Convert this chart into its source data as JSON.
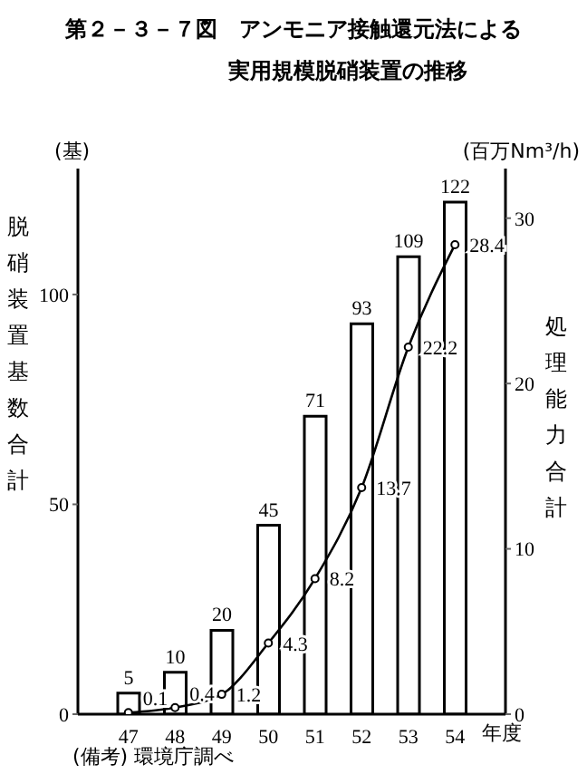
{
  "chart_data": {
    "type": "bar",
    "title": "第２－３－７図　アンモニア接触還元法による",
    "subtitle": "実用規模脱硝装置の推移",
    "xlabel": "年度",
    "ylabel": "脱硝装置基数合計",
    "y2label": "処理能力合計",
    "annotations": [
      "(基)",
      "(百万Nm³/h)",
      "(備考) 環境庁調べ"
    ],
    "categories": [
      "47",
      "48",
      "49",
      "50",
      "51",
      "52",
      "53",
      "54"
    ],
    "series": [
      {
        "color": "#000000",
        "values": [
          5,
          10,
          20,
          45,
          71,
          93,
          109,
          122
        ]
      },
      {
        "type": "line",
        "axis": "y2",
        "color": "#000000",
        "values": [
          0.1,
          0.4,
          1.2,
          4.3,
          8.2,
          13.7,
          22.2,
          28.4
        ]
      }
    ],
    "ylim": [
      0,
      130
    ],
    "yticks": [
      0,
      50,
      100
    ],
    "y2lim": [
      0,
      33
    ],
    "y2ticks": [
      0,
      10,
      20,
      30
    ],
    "data_labels": true,
    "grid": false,
    "legend": false,
    "marker": "circle",
    "line_style": "solid"
  }
}
